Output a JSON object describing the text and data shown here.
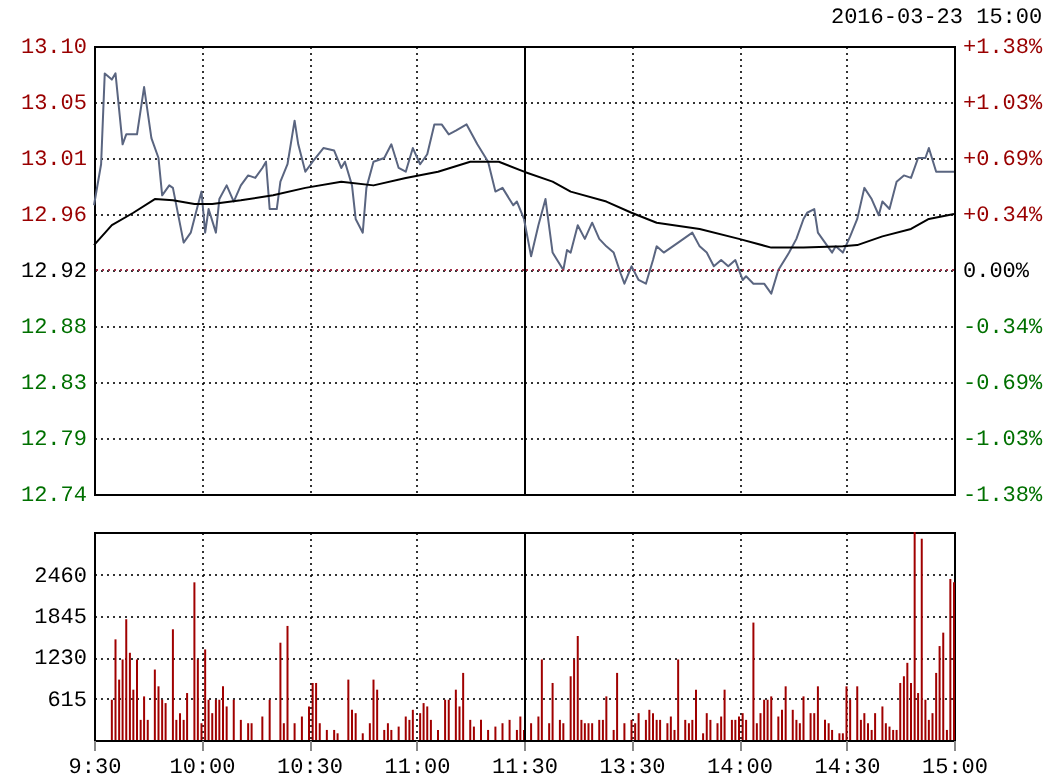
{
  "chart_data": [
    {
      "type": "line",
      "xlim": [
        9.5,
        11.5
      ],
      "xticks": [
        {
          "value": 9.5,
          "label": null
        },
        {
          "value": 10,
          "label": null
        },
        {
          "value": 10.5,
          "label": null
        },
        {
          "value": 11,
          "label": null
        },
        {
          "value": 11.5,
          "label": null
        }
      ],
      "ylim": [
        12.74,
        13.1
      ],
      "yticks": [
        {
          "value": 12.74,
          "label": "12.74"
        },
        {
          "value": 12.785,
          "label": "12.79"
        },
        {
          "value": 12.83,
          "label": "12.83"
        },
        {
          "value": 12.875,
          "label": "12.88"
        },
        {
          "value": 12.92,
          "label": "12.92"
        },
        {
          "value": 12.965,
          "label": "12.96"
        },
        {
          "value": 13.01,
          "label": "13.01"
        },
        {
          "value": 13.055,
          "label": "13.05"
        },
        {
          "value": 13.1,
          "label": "13.10"
        }
      ],
      "tick_labels": "y",
      "grid": true,
      "ref_lines": [
        {
          "axis": "y",
          "value": 12.92,
          "color": "#a0304a",
          "line_style": "dotted"
        }
      ],
      "series": [
        {
          "color": "#5a6580",
          "x": [
            9.5,
            9.533,
            9.55,
            9.583,
            9.6,
            9.633,
            9.65,
            9.7,
            9.733,
            9.767,
            9.8,
            9.817,
            9.85,
            9.867,
            9.917,
            9.95,
            9.983,
            10,
            10.017,
            10.033,
            10.067,
            10.083,
            10.117,
            10.15,
            10.183,
            10.217,
            10.25,
            10.283,
            10.3,
            10.317,
            10.35,
            10.367,
            10.4,
            10.433,
            10.45,
            10.483,
            10.517,
            10.567,
            10.617,
            10.65,
            10.667,
            10.7,
            10.717,
            10.75,
            10.767,
            10.8,
            10.85,
            10.883,
            10.917,
            10.95,
            10.983,
            11.017,
            11.05,
            11.083,
            11.117,
            11.15,
            11.183,
            11.233,
            11.283,
            11.333,
            11.367,
            11.4,
            11.45,
            11.467,
            11.5
          ],
          "values": [
            12.972,
            13.005,
            13.078,
            13.073,
            13.078,
            13.021,
            13.029,
            13.029,
            13.067,
            13.026,
            13.01,
            12.98,
            12.988,
            12.986,
            12.942,
            12.95,
            12.972,
            12.983,
            12.95,
            12.969,
            12.95,
            12.977,
            12.988,
            12.975,
            12.988,
            12.996,
            12.994,
            13.002,
            13.007,
            12.969,
            12.969,
            12.991,
            13.005,
            13.04,
            13.021,
            12.999,
            13.007,
            13.018,
            13.016,
            13.002,
            13.007,
            12.988,
            12.961,
            12.95,
            12.986,
            13.007,
            13.01,
            13.021,
            13.002,
            12.999,
            13.018,
            13.005,
            13.013,
            13.037,
            13.037,
            13.029,
            13.032,
            13.037,
            13.021,
            13.007,
            12.983,
            12.986,
            12.972,
            12.975,
            12.961
          ]
        },
        {
          "color": "#000000",
          "x": [
            9.5,
            9.583,
            9.683,
            9.783,
            9.867,
            9.967,
            10.05,
            10.183,
            10.333,
            10.483,
            10.65,
            10.8,
            10.95,
            11.1,
            11.25,
            11.383,
            11.5
          ],
          "values": [
            12.94,
            12.956,
            12.966,
            12.977,
            12.976,
            12.973,
            12.973,
            12.976,
            12.98,
            12.986,
            12.991,
            12.988,
            12.994,
            12.999,
            13.007,
            13.007,
            12.999
          ]
        }
      ]
    },
    {
      "type": "line",
      "annotations": [
        "2016-03-23 15:00"
      ],
      "xlim": [
        13,
        15
      ],
      "xticks": [
        {
          "value": 13.5,
          "label": null
        },
        {
          "value": 14,
          "label": null
        },
        {
          "value": 14.5,
          "label": null
        },
        {
          "value": 15,
          "label": null
        }
      ],
      "ylim": [
        12.74,
        13.1
      ],
      "yticks": [
        {
          "value": 12.74,
          "label": null
        },
        {
          "value": 12.785,
          "label": null
        },
        {
          "value": 12.83,
          "label": null
        },
        {
          "value": 12.875,
          "label": null
        },
        {
          "value": 12.92,
          "label": null
        },
        {
          "value": 12.965,
          "label": null
        },
        {
          "value": 13.01,
          "label": null
        },
        {
          "value": 13.055,
          "label": null
        },
        {
          "value": 13.1,
          "label": null
        }
      ],
      "y2lim": [
        -1.38,
        1.38
      ],
      "y2ticks": [
        {
          "value": -1.38,
          "label": "-1.38%"
        },
        {
          "value": -1.035,
          "label": "-1.03%"
        },
        {
          "value": -0.69,
          "label": "-0.69%"
        },
        {
          "value": -0.345,
          "label": "-0.34%"
        },
        {
          "value": 0,
          "label": "0.00%"
        },
        {
          "value": 0.345,
          "label": "+0.34%"
        },
        {
          "value": 0.69,
          "label": "+0.69%"
        },
        {
          "value": 1.035,
          "label": "+1.03%"
        },
        {
          "value": 1.38,
          "label": "+1.38%"
        }
      ],
      "tick_labels": false,
      "grid": true,
      "ref_lines": [
        {
          "axis": "y",
          "value": 12.92,
          "color": "#a0304a",
          "line_style": "dotted"
        }
      ],
      "series": [
        {
          "color": "#5a6580",
          "x": [
            13,
            13.033,
            13.067,
            13.1,
            13.133,
            13.183,
            13.2,
            13.217,
            13.25,
            13.283,
            13.317,
            13.35,
            13.383,
            13.417,
            13.45,
            13.467,
            13.5,
            13.533,
            13.567,
            13.6,
            13.617,
            13.65,
            13.717,
            13.783,
            13.817,
            13.85,
            13.883,
            13.917,
            13.95,
            13.983,
            14.017,
            14.033,
            14.067,
            14.117,
            14.15,
            14.183,
            14.233,
            14.267,
            14.3,
            14.317,
            14.35,
            14.367,
            14.4,
            14.433,
            14.45,
            14.483,
            14.517,
            14.55,
            14.583,
            14.617,
            14.65,
            14.667,
            14.7,
            14.733,
            14.767,
            14.8,
            14.833,
            14.867,
            14.883,
            14.917,
            14.95,
            15
          ],
          "values": [
            12.961,
            12.931,
            12.956,
            12.977,
            12.934,
            12.92,
            12.936,
            12.934,
            12.956,
            12.945,
            12.958,
            12.945,
            12.939,
            12.934,
            12.917,
            12.909,
            12.923,
            12.912,
            12.909,
            12.928,
            12.939,
            12.934,
            12.942,
            12.95,
            12.939,
            12.934,
            12.923,
            12.928,
            12.923,
            12.928,
            12.912,
            12.915,
            12.909,
            12.909,
            12.901,
            12.92,
            12.934,
            12.945,
            12.961,
            12.966,
            12.969,
            12.95,
            12.942,
            12.934,
            12.939,
            12.934,
            12.947,
            12.961,
            12.986,
            12.977,
            12.964,
            12.975,
            12.969,
            12.991,
            12.996,
            12.994,
            13.01,
            13.01,
            13.018,
            12.999,
            12.999,
            12.999
          ]
        },
        {
          "color": "#000000",
          "x": [
            13,
            13.133,
            13.217,
            13.383,
            13.5,
            13.617,
            13.817,
            14,
            14.15,
            14.3,
            14.483,
            14.55,
            14.667,
            14.8,
            14.883,
            15
          ],
          "values": [
            12.999,
            12.991,
            12.983,
            12.975,
            12.966,
            12.958,
            12.953,
            12.945,
            12.938,
            12.938,
            12.939,
            12.94,
            12.947,
            12.953,
            12.961,
            12.965
          ]
        }
      ]
    },
    {
      "type": "bar",
      "xlim": [
        9.5,
        11.5
      ],
      "xticks": [
        {
          "value": 9.5,
          "label": "9:30"
        },
        {
          "value": 10,
          "label": "10:00"
        },
        {
          "value": 10.5,
          "label": "10:30"
        },
        {
          "value": 11,
          "label": "11:00"
        },
        {
          "value": 11.5,
          "label": "11:30"
        }
      ],
      "ylim": [
        0,
        3100
      ],
      "yticks": [
        {
          "value": 0,
          "label": null
        },
        615,
        1230,
        1845,
        2460
      ],
      "grid": true,
      "series": [
        {
          "color": "#a00000",
          "x": [
            9.583,
            9.6,
            9.617,
            9.633,
            9.65,
            9.667,
            9.683,
            9.7,
            9.717,
            9.733,
            9.75,
            9.783,
            9.8,
            9.817,
            9.833,
            9.867,
            9.883,
            9.9,
            9.917,
            9.933,
            9.967,
            9.983,
            10,
            10.017,
            10.033,
            10.05,
            10.067,
            10.083,
            10.1,
            10.117,
            10.15,
            10.183,
            10.217,
            10.233,
            10.283,
            10.317,
            10.367,
            10.383,
            10.4,
            10.433,
            10.467,
            10.5,
            10.517,
            10.533,
            10.55,
            10.583,
            10.617,
            10.633,
            10.683,
            10.7,
            10.717,
            10.75,
            10.783,
            10.8,
            10.817,
            10.85,
            10.867,
            10.883,
            10.917,
            10.95,
            10.967,
            10.983,
            11.017,
            11.033,
            11.05,
            11.067,
            11.1,
            11.133,
            11.15,
            11.183,
            11.2,
            11.217,
            11.25,
            11.267,
            11.3,
            11.333,
            11.367,
            11.4,
            11.433,
            11.467,
            11.483,
            11.5
          ],
          "values": [
            600,
            1500,
            900,
            1200,
            1800,
            1300,
            750,
            1200,
            300,
            650,
            300,
            1050,
            800,
            600,
            550,
            1650,
            300,
            400,
            300,
            700,
            2350,
            1200,
            250,
            1350,
            600,
            400,
            600,
            600,
            800,
            500,
            600,
            300,
            250,
            250,
            350,
            600,
            1450,
            250,
            1700,
            250,
            350,
            500,
            850,
            850,
            250,
            150,
            150,
            100,
            900,
            450,
            400,
            100,
            250,
            900,
            750,
            150,
            250,
            150,
            200,
            350,
            300,
            450,
            400,
            550,
            500,
            300,
            150,
            600,
            600,
            750,
            500,
            1000,
            300,
            200,
            300,
            150,
            200,
            250,
            300,
            150,
            350,
            150
          ]
        }
      ]
    },
    {
      "type": "bar",
      "xlim": [
        13,
        15
      ],
      "xticks": [
        {
          "value": 13.5,
          "label": "13:30"
        },
        {
          "value": 14,
          "label": "14:00"
        },
        {
          "value": 14.5,
          "label": "14:30"
        },
        {
          "value": 15,
          "label": "15:00"
        }
      ],
      "ylim": [
        0,
        3100
      ],
      "yticks": [
        0,
        615,
        1230,
        1845,
        2460
      ],
      "tick_labels": "x",
      "grid": true,
      "series": [
        {
          "color": "#a00000",
          "x": [
            13.033,
            13.067,
            13.083,
            13.117,
            13.133,
            13.167,
            13.183,
            13.217,
            13.233,
            13.25,
            13.267,
            13.283,
            13.3,
            13.317,
            13.35,
            13.367,
            13.383,
            13.417,
            13.433,
            13.467,
            13.5,
            13.517,
            13.533,
            13.567,
            13.583,
            13.6,
            13.617,
            13.633,
            13.667,
            13.683,
            13.7,
            13.717,
            13.75,
            13.767,
            13.783,
            13.8,
            13.833,
            13.85,
            13.867,
            13.9,
            13.917,
            13.933,
            13.967,
            13.983,
            14,
            14.017,
            14.033,
            14.067,
            14.083,
            14.1,
            14.117,
            14.133,
            14.15,
            14.183,
            14.2,
            14.217,
            14.25,
            14.267,
            14.283,
            14.3,
            14.333,
            14.35,
            14.367,
            14.4,
            14.417,
            14.433,
            14.467,
            14.483,
            14.5,
            14.517,
            14.55,
            14.567,
            14.583,
            14.6,
            14.617,
            14.633,
            14.667,
            14.683,
            14.7,
            14.717,
            14.733,
            14.75,
            14.767,
            14.783,
            14.8,
            14.817,
            14.833,
            14.85,
            14.867,
            14.883,
            14.9,
            14.917,
            14.933,
            14.95,
            14.967,
            14.983,
            15
          ],
          "values": [
            250,
            350,
            1200,
            250,
            850,
            300,
            250,
            950,
            1200,
            1550,
            300,
            250,
            250,
            250,
            300,
            300,
            650,
            150,
            1000,
            250,
            300,
            250,
            400,
            300,
            450,
            400,
            300,
            300,
            250,
            350,
            150,
            1200,
            300,
            250,
            300,
            750,
            100,
            400,
            300,
            250,
            350,
            750,
            300,
            300,
            350,
            400,
            300,
            1750,
            250,
            400,
            600,
            600,
            650,
            350,
            450,
            800,
            450,
            300,
            250,
            650,
            400,
            400,
            800,
            300,
            250,
            150,
            100,
            100,
            800,
            600,
            800,
            300,
            400,
            250,
            150,
            400,
            500,
            250,
            200,
            150,
            150,
            850,
            950,
            1150,
            850,
            3100,
            700,
            3000,
            600,
            300,
            400,
            1000,
            1400,
            1600,
            150,
            2400,
            2350
          ]
        }
      ]
    }
  ]
}
